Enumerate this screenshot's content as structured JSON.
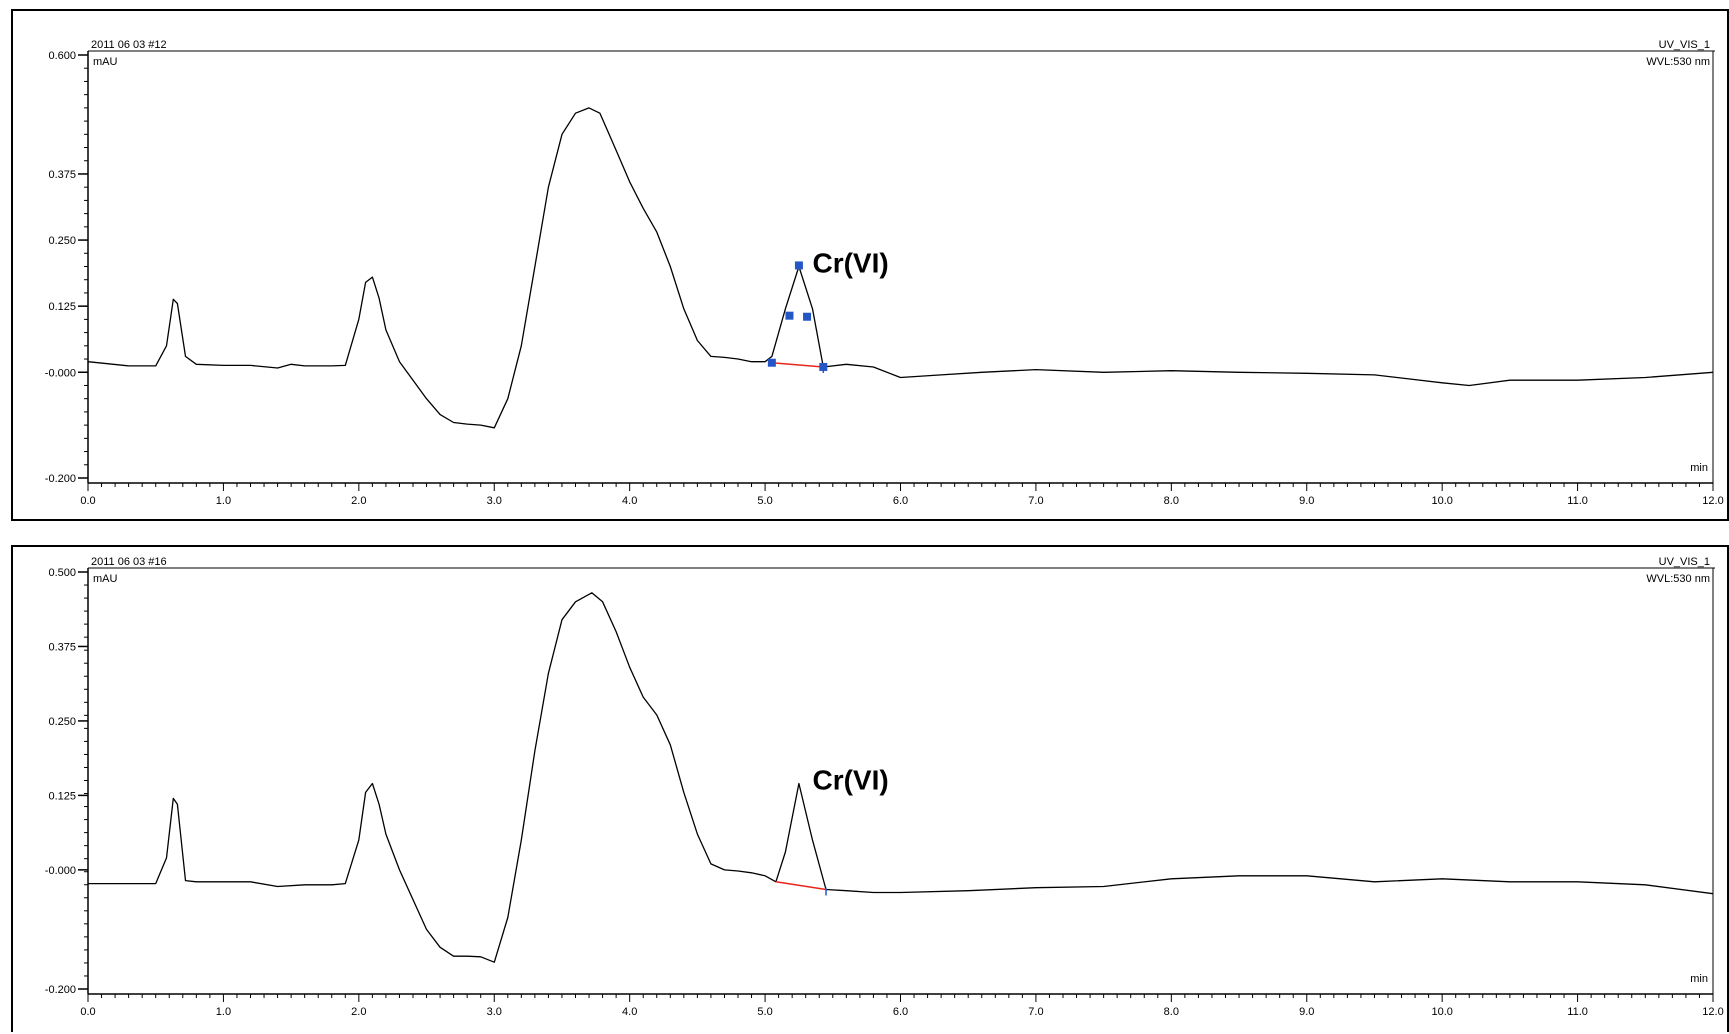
{
  "chart_data": [
    {
      "type": "line",
      "sample": "2011 06 03 #12",
      "channel": "UV_VIS_1",
      "wavelength": "WVL:530 nm",
      "ylabel": "mAU",
      "xlabel": "min",
      "xlim": [
        0,
        12
      ],
      "ylim": [
        -0.2,
        0.6
      ],
      "x_ticks": [
        "0.0",
        "1.0",
        "2.0",
        "3.0",
        "4.0",
        "5.0",
        "6.0",
        "7.0",
        "8.0",
        "9.0",
        "10.0",
        "11.0",
        "12.0"
      ],
      "y_ticks": [
        {
          "value": 0.6,
          "label": "0.600"
        },
        {
          "value": 0.375,
          "label": "0.375"
        },
        {
          "value": 0.25,
          "label": "0.250"
        },
        {
          "value": 0.125,
          "label": "0.125"
        },
        {
          "value": 0.0,
          "label": "-0.000"
        },
        {
          "value": -0.2,
          "label": "-0.200"
        }
      ],
      "annotation": {
        "text": "Cr(VI)",
        "x": 5.35,
        "y": 0.2
      },
      "baseline": {
        "x": [
          5.05,
          5.43
        ],
        "y": [
          0.018,
          0.01
        ],
        "color": "#e8261c"
      },
      "markers": {
        "x": [
          5.05,
          5.18,
          5.25,
          5.31,
          5.43
        ],
        "y": [
          0.018,
          0.107,
          0.202,
          0.105,
          0.01
        ],
        "color": "#2457c5"
      },
      "series": [
        {
          "x": [
            0.0,
            0.3,
            0.5,
            0.58,
            0.63,
            0.66,
            0.72,
            0.8,
            1.0,
            1.2,
            1.4,
            1.5,
            1.6,
            1.8,
            1.9,
            2.0,
            2.05,
            2.1,
            2.15,
            2.2,
            2.3,
            2.5,
            2.6,
            2.7,
            2.8,
            2.9,
            3.0,
            3.1,
            3.2,
            3.3,
            3.4,
            3.5,
            3.6,
            3.7,
            3.78,
            3.9,
            4.0,
            4.1,
            4.2,
            4.3,
            4.4,
            4.5,
            4.6,
            4.7,
            4.8,
            4.9,
            5.0,
            5.05,
            5.15,
            5.25,
            5.35,
            5.43,
            5.6,
            5.8,
            6.0,
            6.3,
            6.6,
            7.0,
            7.5,
            8.0,
            8.5,
            9.0,
            9.5,
            10.0,
            10.2,
            10.5,
            11.0,
            11.5,
            12.0
          ],
          "y": [
            0.02,
            0.012,
            0.012,
            0.05,
            0.138,
            0.13,
            0.03,
            0.015,
            0.013,
            0.013,
            0.008,
            0.015,
            0.012,
            0.012,
            0.013,
            0.1,
            0.17,
            0.18,
            0.14,
            0.08,
            0.02,
            -0.05,
            -0.08,
            -0.095,
            -0.098,
            -0.1,
            -0.105,
            -0.05,
            0.05,
            0.2,
            0.35,
            0.45,
            0.49,
            0.5,
            0.49,
            0.42,
            0.36,
            0.31,
            0.265,
            0.2,
            0.12,
            0.06,
            0.03,
            0.028,
            0.025,
            0.02,
            0.02,
            0.03,
            0.12,
            0.2,
            0.12,
            0.01,
            0.015,
            0.01,
            -0.01,
            -0.005,
            0.0,
            0.005,
            0.0,
            0.003,
            0.0,
            -0.002,
            -0.005,
            -0.02,
            -0.025,
            -0.015,
            -0.015,
            -0.01,
            0.0
          ]
        }
      ]
    },
    {
      "type": "line",
      "sample": "2011 06 03 #16",
      "channel": "UV_VIS_1",
      "wavelength": "WVL:530 nm",
      "ylabel": "mAU",
      "xlabel": "min",
      "xlim": [
        0,
        12
      ],
      "ylim": [
        -0.2,
        0.5
      ],
      "x_ticks": [
        "0.0",
        "1.0",
        "2.0",
        "3.0",
        "4.0",
        "5.0",
        "6.0",
        "7.0",
        "8.0",
        "9.0",
        "10.0",
        "11.0",
        "12.0"
      ],
      "y_ticks": [
        {
          "value": 0.5,
          "label": "0.500"
        },
        {
          "value": 0.375,
          "label": "0.375"
        },
        {
          "value": 0.25,
          "label": "0.250"
        },
        {
          "value": 0.125,
          "label": "0.125"
        },
        {
          "value": 0.0,
          "label": "-0.000"
        },
        {
          "value": -0.2,
          "label": "-0.200"
        }
      ],
      "annotation": {
        "text": "Cr(VI)",
        "x": 5.35,
        "y": 0.145
      },
      "baseline": {
        "x": [
          5.08,
          5.45
        ],
        "y": [
          -0.02,
          -0.033
        ],
        "color": "#e8261c"
      },
      "series": [
        {
          "x": [
            0.0,
            0.3,
            0.5,
            0.58,
            0.63,
            0.66,
            0.72,
            0.8,
            1.0,
            1.2,
            1.4,
            1.6,
            1.8,
            1.9,
            2.0,
            2.05,
            2.1,
            2.15,
            2.2,
            2.3,
            2.5,
            2.6,
            2.7,
            2.8,
            2.9,
            3.0,
            3.1,
            3.2,
            3.3,
            3.4,
            3.5,
            3.6,
            3.72,
            3.8,
            3.9,
            4.0,
            4.1,
            4.2,
            4.3,
            4.4,
            4.5,
            4.6,
            4.7,
            4.8,
            4.9,
            5.0,
            5.08,
            5.15,
            5.25,
            5.35,
            5.45,
            5.6,
            5.8,
            6.0,
            6.5,
            7.0,
            7.5,
            8.0,
            8.5,
            9.0,
            9.5,
            10.0,
            10.5,
            11.0,
            11.5,
            12.0
          ],
          "y": [
            -0.023,
            -0.023,
            -0.023,
            0.02,
            0.12,
            0.11,
            -0.018,
            -0.02,
            -0.02,
            -0.02,
            -0.028,
            -0.025,
            -0.025,
            -0.023,
            0.05,
            0.13,
            0.145,
            0.11,
            0.06,
            0.0,
            -0.1,
            -0.13,
            -0.145,
            -0.145,
            -0.146,
            -0.155,
            -0.08,
            0.05,
            0.2,
            0.33,
            0.42,
            0.45,
            0.465,
            0.45,
            0.4,
            0.34,
            0.29,
            0.26,
            0.21,
            0.13,
            0.06,
            0.01,
            0.0,
            -0.002,
            -0.005,
            -0.01,
            -0.02,
            0.03,
            0.145,
            0.05,
            -0.033,
            -0.035,
            -0.038,
            -0.038,
            -0.035,
            -0.03,
            -0.028,
            -0.015,
            -0.01,
            -0.01,
            -0.02,
            -0.015,
            -0.02,
            -0.02,
            -0.025,
            -0.04
          ]
        }
      ]
    }
  ]
}
